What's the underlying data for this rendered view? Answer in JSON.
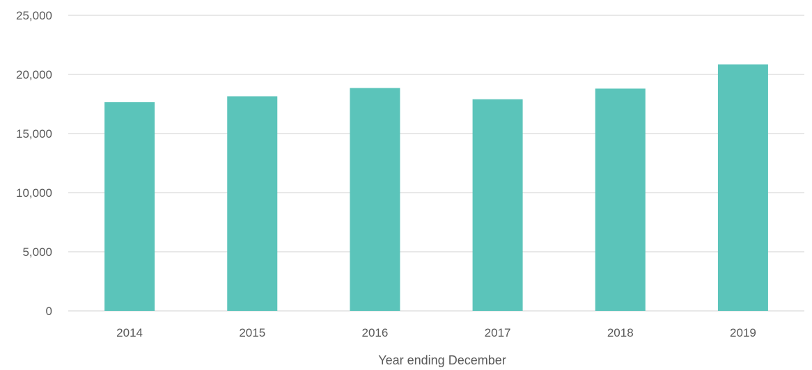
{
  "chart_data": {
    "type": "bar",
    "title": "",
    "xlabel": "Year ending December",
    "ylabel": "",
    "categories": [
      "2014",
      "2015",
      "2016",
      "2017",
      "2018",
      "2019"
    ],
    "values": [
      17650,
      18150,
      18850,
      17900,
      18800,
      20850
    ],
    "ylim": [
      0,
      25000
    ],
    "yticks": [
      0,
      5000,
      10000,
      15000,
      20000,
      25000
    ],
    "ytick_labels": [
      "0",
      "5,000",
      "10,000",
      "15,000",
      "20,000",
      "25,000"
    ],
    "grid": true,
    "legend": "none",
    "bar_color": "#5BC4BA",
    "grid_color": "#D9D9D9"
  }
}
